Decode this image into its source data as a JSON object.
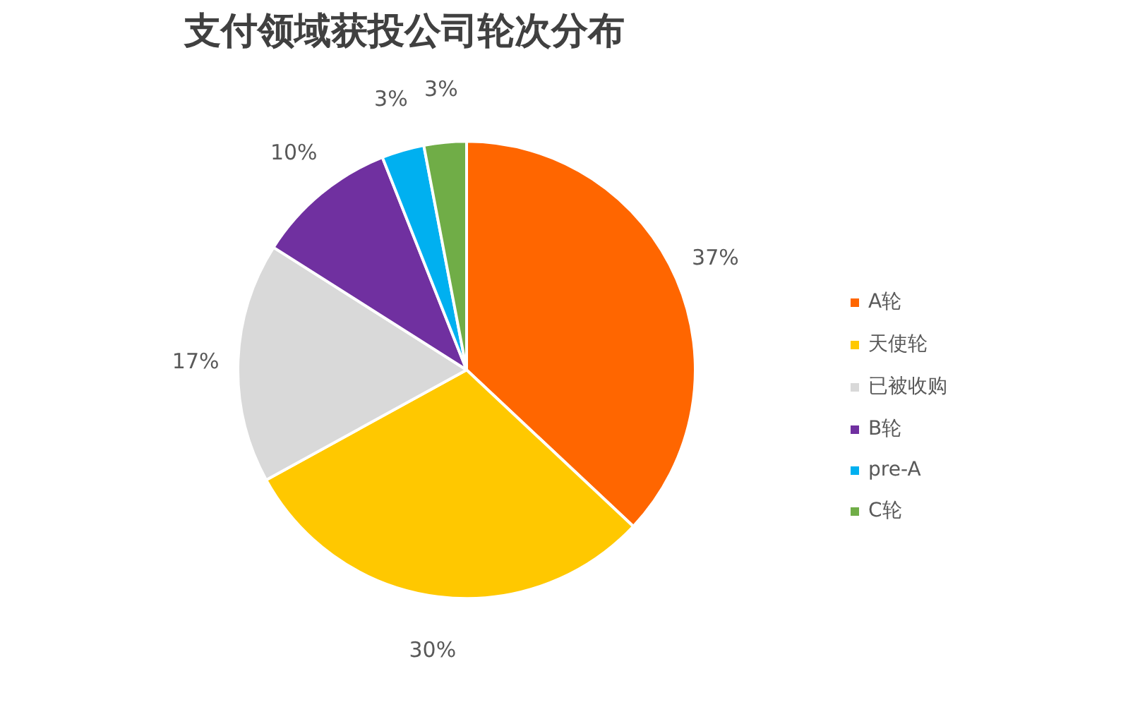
{
  "chart_data": {
    "type": "pie",
    "title": "支付领域获投公司轮次分布",
    "categories": [
      "A轮",
      "天使轮",
      "已被收购",
      "B轮",
      "pre-A",
      "C轮"
    ],
    "values": [
      37,
      30,
      17,
      10,
      3,
      3
    ],
    "colors": [
      "#ff6600",
      "#ffc800",
      "#d9d9d9",
      "#7030a0",
      "#00b0f0",
      "#70ad47"
    ],
    "value_labels": [
      "37%",
      "30%",
      "17%",
      "10%",
      "3%",
      "3%"
    ],
    "legend": "right"
  }
}
